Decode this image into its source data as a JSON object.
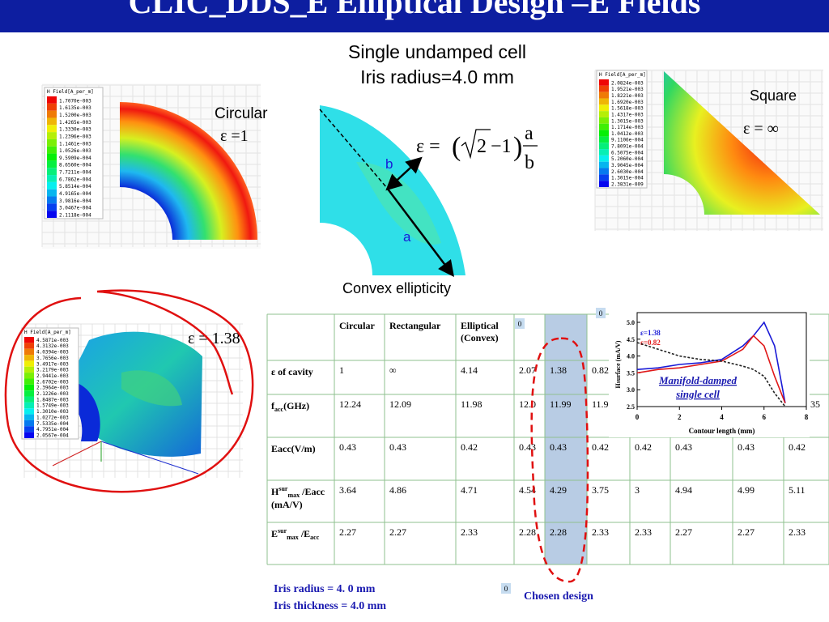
{
  "header": {
    "title": "CLIC_DDS_E Elliptical Design –E Fields"
  },
  "heading": [
    "Single undamped cell",
    "Iris radius=4.0 mm"
  ],
  "circular": {
    "label": "Circular",
    "epsilon": "ε =1",
    "legend_title": "H Field[A_per_m]",
    "legend": [
      "1.7070e-003",
      "1.6135e-003",
      "1.5200e-003",
      "1.4265e-003",
      "1.3330e-003",
      "1.2396e-003",
      "1.1461e-003",
      "1.0526e-003",
      "9.5909e-004",
      "8.6560e-004",
      "7.7211e-004",
      "6.7862e-004",
      "5.8514e-004",
      "4.9165e-004",
      "3.9816e-004",
      "3.0467e-004",
      "2.1118e-004"
    ]
  },
  "convex": {
    "label": "Convex ellipticity",
    "a": "a",
    "b": "b",
    "formula": {
      "lhs": "ε =",
      "root": "2",
      "minus": "−1",
      "num": "a",
      "den": "b"
    }
  },
  "square": {
    "label": "Square",
    "epsilon": "ε = ∞",
    "legend_title": "H Field[A_per_m]",
    "legend": [
      "2.0824e-003",
      "1.9521e-003",
      "1.8221e-003",
      "1.6920e-003",
      "1.5618e-003",
      "1.4317e-003",
      "1.3015e-003",
      "1.1714e-003",
      "1.0412e-003",
      "9.1106e-004",
      "7.8091e-004",
      "6.5075e-004",
      "5.2060e-004",
      "3.9045e-004",
      "2.6030e-004",
      "1.3015e-004",
      "2.3831e-009"
    ]
  },
  "damped": {
    "epsilon": "ε = 1.38",
    "legend_title": "H Field[A_per_m]",
    "legend": [
      "4.5871e-003",
      "4.3132e-003",
      "4.0394e-003",
      "3.7656e-003",
      "3.4917e-003",
      "3.2179e-003",
      "2.9441e-003",
      "2.6702e-003",
      "2.3964e-003",
      "2.1226e-003",
      "1.8487e-003",
      "1.5749e-003",
      "1.3010e-003",
      "1.0272e-003",
      "7.5335e-004",
      "4.7951e-004",
      "2.0567e-004"
    ]
  },
  "table": {
    "header": [
      [
        "Circular"
      ],
      [
        "Rectangular"
      ],
      [
        "Elliptical",
        "(Convex)"
      ]
    ],
    "rows": [
      {
        "label": [
          [
            {
              "text": "ε of cavity"
            }
          ]
        ],
        "cells": [
          "1",
          "∞",
          "4.14",
          "2.07",
          "1.38",
          "0.82",
          null,
          null,
          null,
          null
        ]
      },
      {
        "label": [
          [
            {
              "text": "f"
            },
            {
              "text": "acc",
              "pos": "sub"
            },
            {
              "text": "(GHz)"
            }
          ]
        ],
        "cells": [
          "12.24",
          "12.09",
          "11.98",
          "12.0",
          "11.99",
          "11.9",
          null,
          null,
          null,
          "35"
        ]
      },
      {
        "label": [
          [
            {
              "text": "Eacc(V/m)"
            }
          ]
        ],
        "cells": [
          "0.43",
          "0.43",
          "0.42",
          "0.43",
          "0.43",
          "0.42",
          "0.42",
          "0.43",
          "0.43",
          "0.42"
        ]
      },
      {
        "label": [
          [
            {
              "text": "H"
            },
            {
              "text": "sur",
              "pos": "sup"
            },
            {
              "text": "max",
              "pos": "sub"
            },
            {
              "text": " /Eacc"
            }
          ],
          [
            {
              "text": "(mA/V)"
            }
          ]
        ],
        "cells": [
          "3.64",
          "4.86",
          "4.71",
          "4.54",
          "4.29",
          "3.75",
          "3",
          "4.94",
          "4.99",
          "5.11"
        ]
      },
      {
        "label": [
          [
            {
              "text": "E"
            },
            {
              "text": "sur",
              "pos": "sup"
            },
            {
              "text": "max",
              "pos": "sub"
            },
            {
              "text": " /E"
            },
            {
              "text": "acc",
              "pos": "sub"
            }
          ]
        ],
        "cells": [
          "2.27",
          "2.27",
          "2.33",
          "2.28",
          "2.28",
          "2.33",
          "2.33",
          "2.27",
          "2.27",
          "2.33"
        ]
      }
    ]
  },
  "markers": [
    "0",
    "0",
    "0"
  ],
  "inset": {
    "ylabel": "Hsurface (mA/V)",
    "xlabel": "Contour length (mm)",
    "annotation": [
      "Manifold-damped",
      "single cell"
    ],
    "xlim": [
      0,
      8
    ],
    "xticks": [
      0,
      2,
      4,
      6,
      8
    ],
    "ylim": [
      2.5,
      5.0
    ],
    "yticks": [
      2.5,
      {
        "value": 3,
        "label": "3.0"
      },
      3.5,
      {
        "value": 4,
        "label": "4.0"
      },
      4.5,
      {
        "value": 5,
        "label": "5.0"
      }
    ],
    "x": [
      0,
      1,
      2,
      3,
      4,
      5,
      5.5,
      6,
      6.5,
      7
    ],
    "series": [
      {
        "name": "ε=1.38",
        "color": "#1a1ad6",
        "values": [
          3.6,
          3.65,
          3.75,
          3.8,
          3.9,
          4.3,
          4.6,
          5.0,
          4.3,
          2.6
        ]
      },
      {
        "name": "ε=0.82",
        "color": "#e01818",
        "values": [
          3.5,
          3.6,
          3.65,
          3.75,
          3.85,
          4.2,
          4.6,
          4.3,
          3.4,
          2.6
        ]
      },
      {
        "color": "#222222",
        "dash": true,
        "values": [
          4.4,
          4.2,
          4.0,
          3.9,
          3.85,
          3.7,
          3.6,
          3.4,
          2.9,
          2.5
        ]
      }
    ]
  },
  "notes": {
    "iris_radius": "Iris radius = 4. 0 mm",
    "iris_thickness": "Iris thickness = 4.0 mm",
    "chosen": "Chosen design"
  }
}
